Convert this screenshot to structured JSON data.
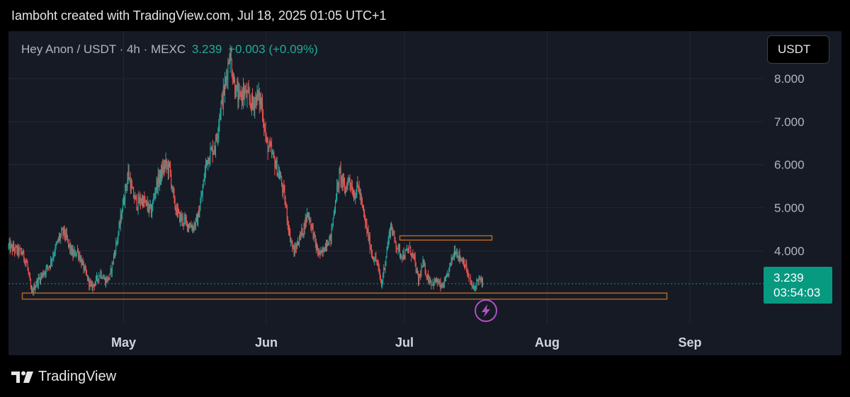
{
  "header": {
    "text": "Iamboht created with TradingView.com, Jul 18, 2025 01:05 UTC+1"
  },
  "symbol": {
    "name": "Hey Anon / USDT · 4h · MEXC",
    "last": "3.239",
    "change": "+0.003 (+0.09%)"
  },
  "currency_button": {
    "label": "USDT"
  },
  "price_label": {
    "price": "3.239",
    "countdown": "03:54:03"
  },
  "footer": {
    "brand": "TradingView",
    "logo_icon": "tradingview-logo-icon"
  },
  "lightning_icon": "lightning-icon",
  "colors": {
    "up": "#26a69a",
    "down": "#ef5350",
    "current_price": "#089981",
    "zone_outline": "#b5651d",
    "lightning": "#b34fc4",
    "background": "#161a25"
  },
  "chart_data": {
    "type": "candlestick",
    "title": "Hey Anon / USDT · 4h · MEXC",
    "y_ticks": [
      {
        "value": 8.0,
        "label": "8.000"
      },
      {
        "value": 7.0,
        "label": "7.000"
      },
      {
        "value": 6.0,
        "label": "6.000"
      },
      {
        "value": 5.0,
        "label": "5.000"
      },
      {
        "value": 4.0,
        "label": "4.000"
      }
    ],
    "x_ticks": [
      {
        "date": "2025-05-01",
        "label": "May"
      },
      {
        "date": "2025-06-01",
        "label": "Jun"
      },
      {
        "date": "2025-07-01",
        "label": "Jul"
      },
      {
        "date": "2025-08-01",
        "label": "Aug"
      },
      {
        "date": "2025-09-01",
        "label": "Sep"
      }
    ],
    "x_range": [
      "2025-04-06",
      "2025-09-17"
    ],
    "y_range": [
      2.3,
      9.1
    ],
    "current_price": 3.239,
    "path": [
      [
        "2025-04-06",
        4.1
      ],
      [
        "2025-04-09",
        3.95
      ],
      [
        "2025-04-10",
        3.7
      ],
      [
        "2025-04-11",
        3.0
      ],
      [
        "2025-04-12",
        3.25
      ],
      [
        "2025-04-14",
        3.55
      ],
      [
        "2025-04-15",
        3.7
      ],
      [
        "2025-04-17",
        4.3
      ],
      [
        "2025-04-18",
        4.45
      ],
      [
        "2025-04-19",
        4.15
      ],
      [
        "2025-04-20",
        3.9
      ],
      [
        "2025-04-21",
        4.0
      ],
      [
        "2025-04-23",
        3.4
      ],
      [
        "2025-04-24",
        3.15
      ],
      [
        "2025-04-25",
        3.3
      ],
      [
        "2025-04-26",
        3.5
      ],
      [
        "2025-04-27",
        3.3
      ],
      [
        "2025-04-28",
        3.4
      ],
      [
        "2025-04-30",
        4.5
      ],
      [
        "2025-05-01",
        5.2
      ],
      [
        "2025-05-02",
        5.8
      ],
      [
        "2025-05-03",
        5.3
      ],
      [
        "2025-05-04",
        5.1
      ],
      [
        "2025-05-05",
        5.2
      ],
      [
        "2025-05-07",
        4.9
      ],
      [
        "2025-05-08",
        5.5
      ],
      [
        "2025-05-10",
        6.0
      ],
      [
        "2025-05-11",
        5.9
      ],
      [
        "2025-05-12",
        5.1
      ],
      [
        "2025-05-13",
        4.8
      ],
      [
        "2025-05-14",
        4.7
      ],
      [
        "2025-05-16",
        4.55
      ],
      [
        "2025-05-17",
        4.7
      ],
      [
        "2025-05-18",
        5.3
      ],
      [
        "2025-05-19",
        6.1
      ],
      [
        "2025-05-21",
        6.5
      ],
      [
        "2025-05-22",
        7.3
      ],
      [
        "2025-05-23",
        7.8
      ],
      [
        "2025-05-24",
        8.6
      ],
      [
        "2025-05-25",
        7.9
      ],
      [
        "2025-05-26",
        7.5
      ],
      [
        "2025-05-27",
        7.7
      ],
      [
        "2025-05-29",
        7.4
      ],
      [
        "2025-05-30",
        7.6
      ],
      [
        "2025-05-31",
        7.4
      ],
      [
        "2025-06-01",
        6.5
      ],
      [
        "2025-06-02",
        6.3
      ],
      [
        "2025-06-03",
        6.0
      ],
      [
        "2025-06-04",
        5.7
      ],
      [
        "2025-06-05",
        5.2
      ],
      [
        "2025-06-06",
        4.4
      ],
      [
        "2025-06-07",
        3.95
      ],
      [
        "2025-06-08",
        4.25
      ],
      [
        "2025-06-09",
        4.5
      ],
      [
        "2025-06-10",
        4.9
      ],
      [
        "2025-06-11",
        4.5
      ],
      [
        "2025-06-12",
        4.0
      ],
      [
        "2025-06-13",
        3.9
      ],
      [
        "2025-06-14",
        4.2
      ],
      [
        "2025-06-15",
        4.3
      ],
      [
        "2025-06-16",
        5.2
      ],
      [
        "2025-06-17",
        5.8
      ],
      [
        "2025-06-18",
        5.4
      ],
      [
        "2025-06-19",
        5.7
      ],
      [
        "2025-06-20",
        5.3
      ],
      [
        "2025-06-21",
        5.5
      ],
      [
        "2025-06-22",
        4.9
      ],
      [
        "2025-06-23",
        4.4
      ],
      [
        "2025-06-24",
        3.9
      ],
      [
        "2025-06-25",
        3.75
      ],
      [
        "2025-06-26",
        3.2
      ],
      [
        "2025-06-27",
        3.9
      ],
      [
        "2025-06-28",
        4.6
      ],
      [
        "2025-06-29",
        4.2
      ],
      [
        "2025-06-30",
        3.95
      ],
      [
        "2025-07-01",
        3.9
      ],
      [
        "2025-07-02",
        4.05
      ],
      [
        "2025-07-03",
        3.85
      ],
      [
        "2025-07-04",
        3.3
      ],
      [
        "2025-07-05",
        3.7
      ],
      [
        "2025-07-06",
        3.4
      ],
      [
        "2025-07-07",
        3.25
      ],
      [
        "2025-07-08",
        3.3
      ],
      [
        "2025-07-09",
        3.15
      ],
      [
        "2025-07-10",
        3.3
      ],
      [
        "2025-07-11",
        3.7
      ],
      [
        "2025-07-12",
        4.05
      ],
      [
        "2025-07-13",
        3.85
      ],
      [
        "2025-07-14",
        3.75
      ],
      [
        "2025-07-15",
        3.35
      ],
      [
        "2025-07-16",
        3.1
      ],
      [
        "2025-07-17",
        3.35
      ],
      [
        "2025-07-18",
        3.239
      ]
    ],
    "annotations": [
      {
        "type": "rectangle",
        "date_start": "2025-04-09",
        "date_end": "2025-08-27",
        "price_top": 3.02,
        "price_bottom": 2.88
      },
      {
        "type": "rectangle",
        "date_start": "2025-06-30",
        "date_end": "2025-07-20",
        "price_top": 4.35,
        "price_bottom": 4.25
      }
    ]
  }
}
